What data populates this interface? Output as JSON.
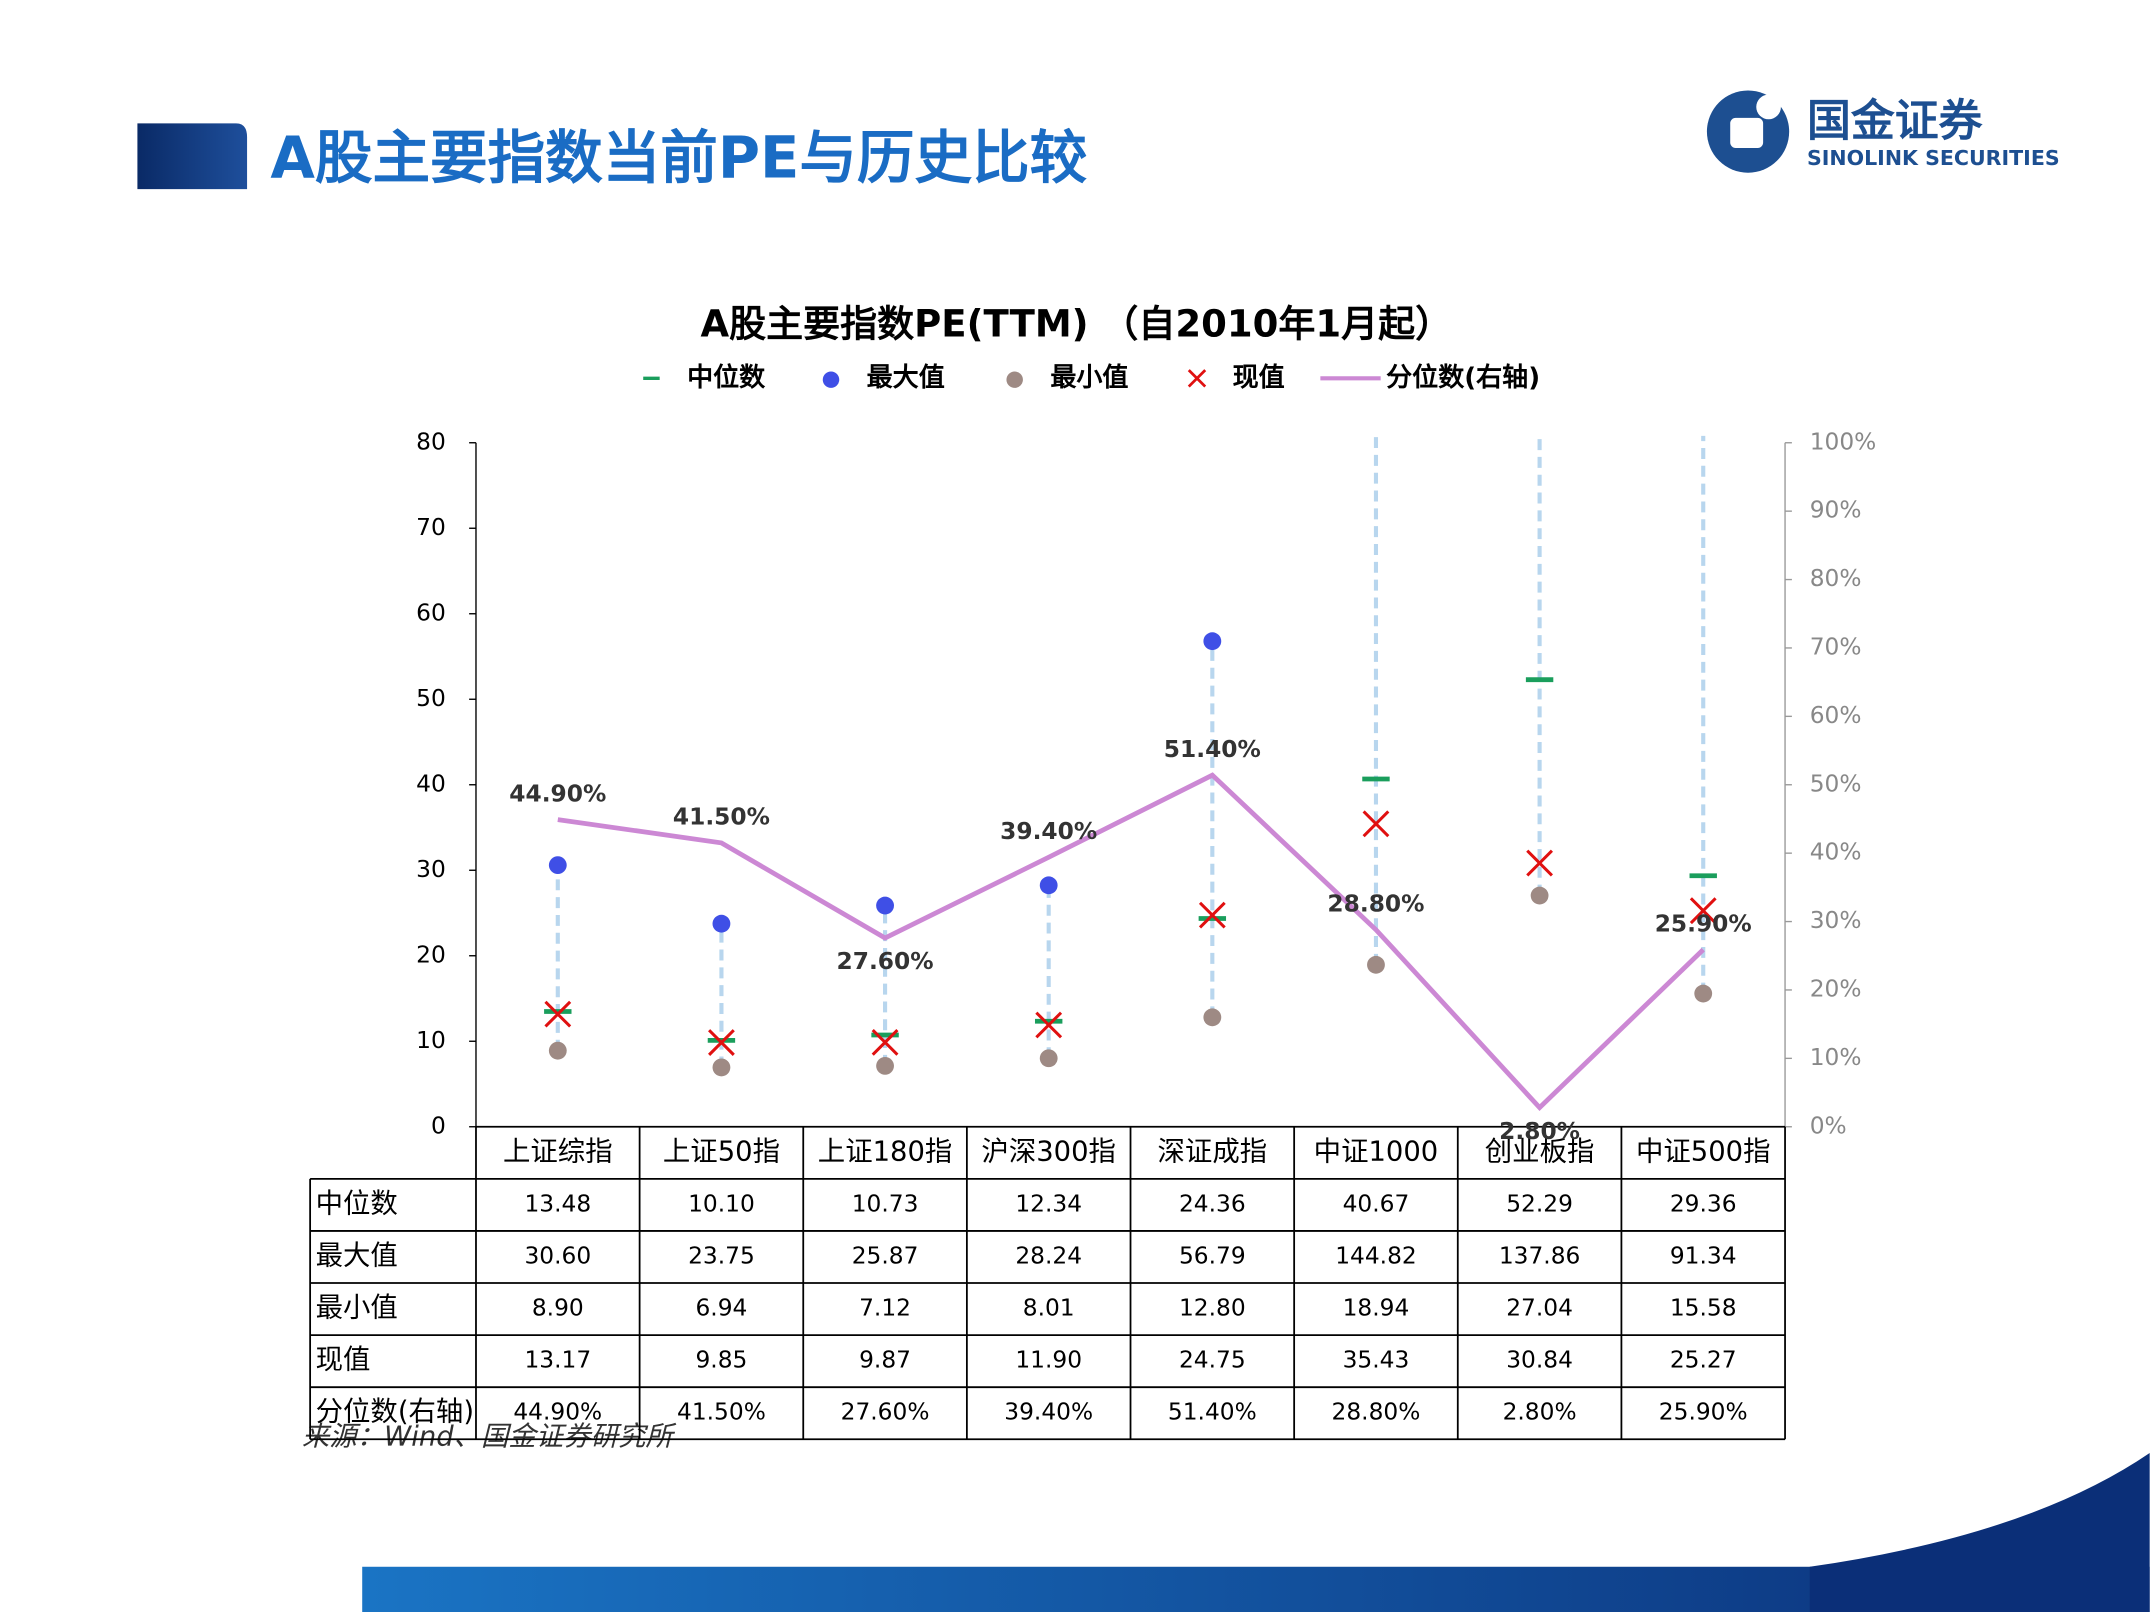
{
  "header": {
    "title": "A股主要指数当前PE与历史比较",
    "logo_cn": "国金证券",
    "logo_en": "SINOLINK SECURITIES"
  },
  "source": "来源：Wind、国金证券研究所",
  "chart_data": {
    "type": "combo",
    "title": "A股主要指数PE(TTM) （自2010年1月起）",
    "categories": [
      "上证综指",
      "上证50指",
      "上证180指",
      "沪深300指",
      "深证成指",
      "中证1000",
      "创业板指",
      "中证500指"
    ],
    "series": [
      {
        "name": "中位数",
        "marker": "dash",
        "color": "#1a9e5c",
        "values": [
          13.48,
          10.1,
          10.73,
          12.34,
          24.36,
          40.67,
          52.29,
          29.36
        ],
        "value_labels": [
          "13.48",
          "10.10",
          "10.73",
          "12.34",
          "24.36",
          "40.67",
          "52.29",
          "29.36"
        ]
      },
      {
        "name": "最大值",
        "marker": "dot",
        "color": "#3f4fe6",
        "values": [
          30.6,
          23.75,
          25.87,
          28.24,
          56.79,
          144.82,
          137.86,
          91.34
        ],
        "value_labels": [
          "30.60",
          "23.75",
          "25.87",
          "28.24",
          "56.79",
          "144.82",
          "137.86",
          "91.34"
        ]
      },
      {
        "name": "最小值",
        "marker": "dot",
        "color": "#9e8a84",
        "values": [
          8.9,
          6.94,
          7.12,
          8.01,
          12.8,
          18.94,
          27.04,
          15.58
        ],
        "value_labels": [
          "8.90",
          "6.94",
          "7.12",
          "8.01",
          "12.80",
          "18.94",
          "27.04",
          "15.58"
        ]
      },
      {
        "name": "现值",
        "marker": "x",
        "color": "#e01010",
        "values": [
          13.17,
          9.85,
          9.87,
          11.9,
          24.75,
          35.43,
          30.84,
          25.27
        ],
        "value_labels": [
          "13.17",
          "9.85",
          "9.87",
          "11.90",
          "24.75",
          "35.43",
          "30.84",
          "25.27"
        ]
      },
      {
        "name": "分位数(右轴)",
        "marker": "line",
        "axis": "y2",
        "color": "#cc88d4",
        "values": [
          44.9,
          41.5,
          27.6,
          39.4,
          51.4,
          28.8,
          2.8,
          25.9
        ],
        "value_labels": [
          "44.90%",
          "41.50%",
          "27.60%",
          "39.40%",
          "51.40%",
          "28.80%",
          "2.80%",
          "25.90%"
        ]
      }
    ],
    "ylim": [
      0,
      80
    ],
    "yticks": [
      0,
      10,
      20,
      30,
      40,
      50,
      60,
      70,
      80
    ],
    "y2lim": [
      0,
      100
    ],
    "y2ticks": [
      {
        "value": 0,
        "label": "0%"
      },
      {
        "value": 10,
        "label": "10%"
      },
      {
        "value": 20,
        "label": "20%"
      },
      {
        "value": 30,
        "label": "30%"
      },
      {
        "value": 40,
        "label": "40%"
      },
      {
        "value": 50,
        "label": "50%"
      },
      {
        "value": 60,
        "label": "60%"
      },
      {
        "value": 70,
        "label": "70%"
      },
      {
        "value": 80,
        "label": "80%"
      },
      {
        "value": 90,
        "label": "90%"
      },
      {
        "value": 100,
        "label": "100%"
      }
    ],
    "range_line_color": "#b8d6ee",
    "legend": "top"
  }
}
